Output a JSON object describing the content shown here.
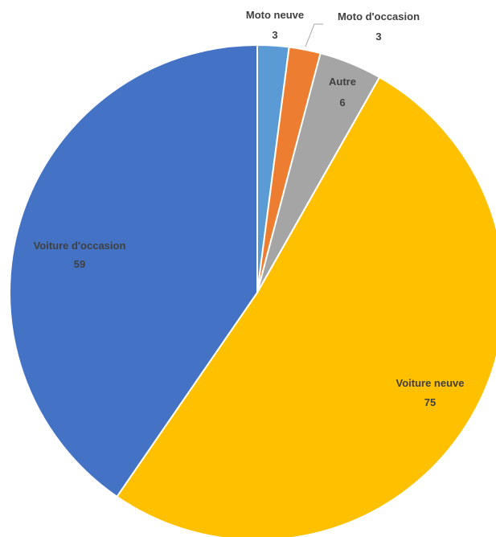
{
  "chart_data": {
    "type": "pie",
    "title": "",
    "slices": [
      {
        "label": "Moto neuve",
        "value": 3,
        "color": "#5B9BD5"
      },
      {
        "label": "Moto d'occasion",
        "value": 3,
        "color": "#ED7D31"
      },
      {
        "label": "Autre",
        "value": 6,
        "color": "#A5A5A5"
      },
      {
        "label": "Voiture neuve",
        "value": 75,
        "color": "#FFC000"
      },
      {
        "label": "Voiture d'occasion",
        "value": 59,
        "color": "#4472C4"
      }
    ],
    "start_angle_deg": 0,
    "direction": "clockwise",
    "slice_border_color": "#FFFFFF",
    "labels_show_name_and_value": true
  }
}
